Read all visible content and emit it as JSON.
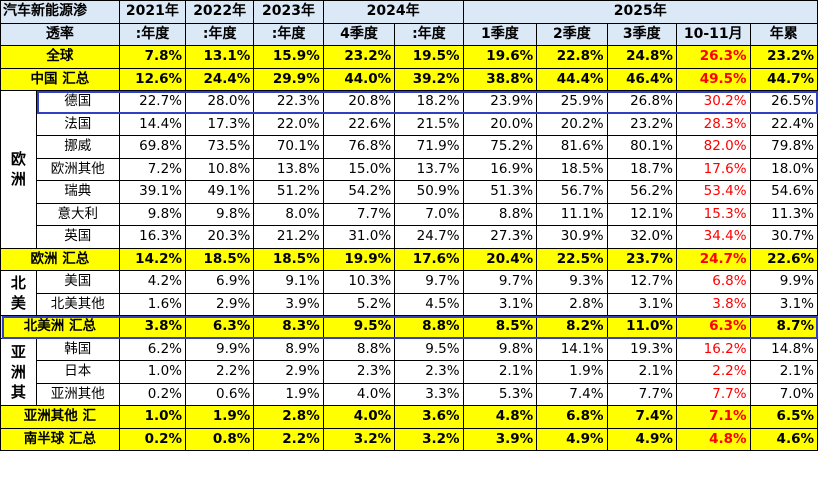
{
  "header": {
    "corner_top": "汽车新能源渗",
    "corner_bottom": "透率",
    "years": [
      "2021年",
      "2022年",
      "2023年",
      "2024年",
      "2025年"
    ],
    "columns": [
      ":年度",
      ":年度",
      ":年度",
      "4季度",
      ":年度",
      "1季度",
      "2季度",
      "3季度",
      "10-11月",
      "年累"
    ]
  },
  "rows": {
    "global": {
      "label": "全球",
      "values": [
        "7.8%",
        "13.1%",
        "15.9%",
        "23.2%",
        "19.5%",
        "19.6%",
        "22.8%",
        "24.8%",
        "26.3%",
        "23.2%"
      ]
    },
    "china": {
      "label": "中国 汇总",
      "values": [
        "12.6%",
        "24.4%",
        "29.9%",
        "44.0%",
        "39.2%",
        "38.8%",
        "44.4%",
        "46.4%",
        "49.5%",
        "44.7%"
      ]
    },
    "europe": {
      "region_label": "欧洲",
      "countries": [
        {
          "label": "德国",
          "values": [
            "22.7%",
            "28.0%",
            "22.3%",
            "20.8%",
            "18.2%",
            "23.9%",
            "25.9%",
            "26.8%",
            "30.2%",
            "26.5%"
          ]
        },
        {
          "label": "法国",
          "values": [
            "14.4%",
            "17.3%",
            "22.0%",
            "22.6%",
            "21.5%",
            "20.0%",
            "20.2%",
            "23.2%",
            "28.3%",
            "22.4%"
          ]
        },
        {
          "label": "挪威",
          "values": [
            "69.8%",
            "73.5%",
            "70.1%",
            "76.8%",
            "71.9%",
            "75.2%",
            "81.6%",
            "80.1%",
            "82.0%",
            "79.8%"
          ]
        },
        {
          "label": "欧洲其他",
          "values": [
            "7.2%",
            "10.8%",
            "13.8%",
            "15.0%",
            "13.7%",
            "16.9%",
            "18.5%",
            "18.7%",
            "17.6%",
            "18.0%"
          ]
        },
        {
          "label": "瑞典",
          "values": [
            "39.1%",
            "49.1%",
            "51.2%",
            "54.2%",
            "50.9%",
            "51.3%",
            "56.7%",
            "56.2%",
            "53.4%",
            "54.6%"
          ]
        },
        {
          "label": "意大利",
          "values": [
            "9.8%",
            "9.8%",
            "8.0%",
            "7.7%",
            "7.0%",
            "8.8%",
            "11.1%",
            "12.1%",
            "15.3%",
            "11.3%"
          ]
        },
        {
          "label": "英国",
          "values": [
            "16.3%",
            "20.3%",
            "21.2%",
            "31.0%",
            "24.7%",
            "27.3%",
            "30.9%",
            "32.0%",
            "34.4%",
            "30.7%"
          ]
        }
      ],
      "total": {
        "label": "欧洲 汇总",
        "values": [
          "14.2%",
          "18.5%",
          "18.5%",
          "19.9%",
          "17.6%",
          "20.4%",
          "22.5%",
          "23.7%",
          "24.7%",
          "22.6%"
        ]
      }
    },
    "north_america": {
      "region_label": "北美",
      "countries": [
        {
          "label": "美国",
          "values": [
            "4.2%",
            "6.9%",
            "9.1%",
            "10.3%",
            "9.7%",
            "9.7%",
            "9.3%",
            "12.7%",
            "6.8%",
            "9.9%"
          ]
        },
        {
          "label": "北美其他",
          "values": [
            "1.6%",
            "2.9%",
            "3.9%",
            "5.2%",
            "4.5%",
            "3.1%",
            "2.8%",
            "3.1%",
            "3.8%",
            "3.1%"
          ]
        }
      ],
      "total": {
        "label": "北美洲 汇总",
        "values": [
          "3.8%",
          "6.3%",
          "8.3%",
          "9.5%",
          "8.8%",
          "8.5%",
          "8.2%",
          "11.0%",
          "6.3%",
          "8.7%"
        ]
      }
    },
    "asia": {
      "region_label": "亚洲其",
      "countries": [
        {
          "label": "韩国",
          "values": [
            "6.2%",
            "9.9%",
            "8.9%",
            "8.8%",
            "9.5%",
            "9.8%",
            "14.1%",
            "19.3%",
            "16.2%",
            "14.8%"
          ]
        },
        {
          "label": "日本",
          "values": [
            "1.0%",
            "2.2%",
            "2.9%",
            "2.3%",
            "2.3%",
            "2.1%",
            "1.9%",
            "2.1%",
            "2.2%",
            "2.1%"
          ]
        },
        {
          "label": "亚洲其他",
          "values": [
            "0.2%",
            "0.6%",
            "1.9%",
            "4.0%",
            "3.3%",
            "5.3%",
            "7.4%",
            "7.7%",
            "7.7%",
            "7.0%"
          ]
        }
      ],
      "total": {
        "label": "亚洲其他 汇",
        "values": [
          "1.0%",
          "1.9%",
          "2.8%",
          "4.0%",
          "3.6%",
          "4.8%",
          "6.8%",
          "7.4%",
          "7.1%",
          "6.5%"
        ]
      }
    },
    "southern": {
      "label": "南半球 汇总",
      "values": [
        "0.2%",
        "0.8%",
        "2.2%",
        "3.2%",
        "3.2%",
        "3.9%",
        "4.9%",
        "4.9%",
        "4.8%",
        "4.6%"
      ]
    }
  },
  "colors": {
    "header_bg": "#dbe8f6",
    "total_bg": "#ffff00",
    "highlight_text": "#ff0000",
    "box_border": "#3040c0"
  }
}
